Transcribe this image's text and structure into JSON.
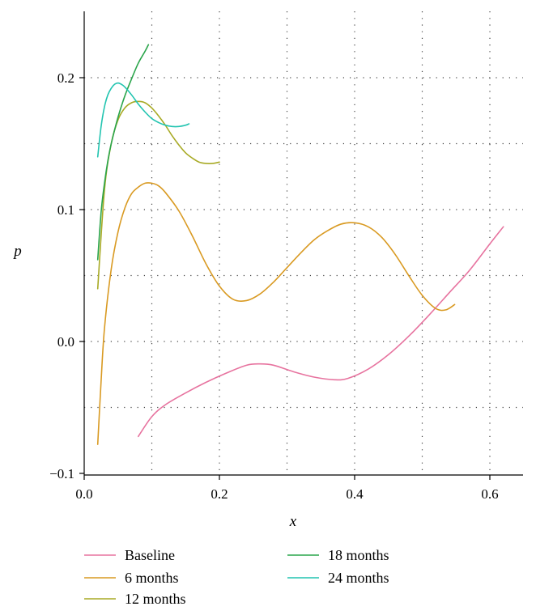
{
  "chart_data": {
    "type": "line",
    "title": "",
    "xlabel": "x",
    "ylabel": "p",
    "xlim": [
      0.0,
      0.65
    ],
    "ylim": [
      -0.1,
      0.25
    ],
    "xticks": [
      0.0,
      0.2,
      0.4,
      0.6
    ],
    "xtick_labels": [
      "0.0",
      "0.2",
      "0.4",
      "0.6"
    ],
    "yticks": [
      -0.1,
      0.0,
      0.1,
      0.2
    ],
    "ytick_labels": [
      "−0.1",
      "0.0",
      "0.1",
      "0.2"
    ],
    "grid": "dotted",
    "legend_position": "bottom",
    "series": [
      {
        "name": "Baseline",
        "color": "#e7739f",
        "x": [
          0.08,
          0.1,
          0.12,
          0.15,
          0.18,
          0.21,
          0.24,
          0.26,
          0.28,
          0.31,
          0.34,
          0.37,
          0.39,
          0.42,
          0.45,
          0.48,
          0.51,
          0.54,
          0.57,
          0.6,
          0.62
        ],
        "y": [
          -0.072,
          -0.057,
          -0.048,
          -0.039,
          -0.031,
          -0.024,
          -0.018,
          -0.017,
          -0.018,
          -0.023,
          -0.027,
          -0.029,
          -0.028,
          -0.021,
          -0.01,
          0.004,
          0.02,
          0.037,
          0.054,
          0.074,
          0.087
        ]
      },
      {
        "name": "6 months",
        "color": "#d99a22",
        "x": [
          0.02,
          0.025,
          0.03,
          0.04,
          0.05,
          0.06,
          0.07,
          0.08,
          0.09,
          0.1,
          0.11,
          0.12,
          0.14,
          0.16,
          0.18,
          0.2,
          0.22,
          0.24,
          0.26,
          0.28,
          0.3,
          0.32,
          0.34,
          0.36,
          0.38,
          0.4,
          0.42,
          0.44,
          0.46,
          0.48,
          0.5,
          0.52,
          0.535,
          0.548
        ],
        "y": [
          -0.078,
          -0.03,
          0.01,
          0.055,
          0.083,
          0.101,
          0.112,
          0.117,
          0.12,
          0.12,
          0.118,
          0.113,
          0.099,
          0.08,
          0.059,
          0.042,
          0.032,
          0.031,
          0.036,
          0.045,
          0.056,
          0.067,
          0.077,
          0.084,
          0.089,
          0.09,
          0.087,
          0.079,
          0.066,
          0.05,
          0.035,
          0.025,
          0.024,
          0.028
        ]
      },
      {
        "name": "12 months",
        "color": "#a8aa25",
        "x": [
          0.02,
          0.03,
          0.04,
          0.05,
          0.06,
          0.07,
          0.08,
          0.09,
          0.1,
          0.11,
          0.12,
          0.13,
          0.14,
          0.15,
          0.16,
          0.17,
          0.18,
          0.19,
          0.2
        ],
        "y": [
          0.04,
          0.115,
          0.15,
          0.168,
          0.177,
          0.181,
          0.182,
          0.181,
          0.177,
          0.171,
          0.164,
          0.156,
          0.149,
          0.143,
          0.139,
          0.136,
          0.135,
          0.135,
          0.136
        ]
      },
      {
        "name": "18 months",
        "color": "#2aa54b",
        "x": [
          0.02,
          0.025,
          0.03,
          0.035,
          0.04,
          0.05,
          0.06,
          0.07,
          0.08,
          0.09,
          0.095
        ],
        "y": [
          0.062,
          0.098,
          0.12,
          0.137,
          0.15,
          0.17,
          0.186,
          0.199,
          0.211,
          0.22,
          0.225
        ]
      },
      {
        "name": "24 months",
        "color": "#22c4b0",
        "x": [
          0.02,
          0.025,
          0.03,
          0.035,
          0.04,
          0.045,
          0.05,
          0.055,
          0.06,
          0.07,
          0.08,
          0.09,
          0.1,
          0.11,
          0.12,
          0.13,
          0.14,
          0.15,
          0.155
        ],
        "y": [
          0.14,
          0.163,
          0.178,
          0.187,
          0.192,
          0.195,
          0.196,
          0.195,
          0.193,
          0.187,
          0.18,
          0.174,
          0.169,
          0.166,
          0.164,
          0.163,
          0.163,
          0.164,
          0.165
        ]
      }
    ]
  }
}
